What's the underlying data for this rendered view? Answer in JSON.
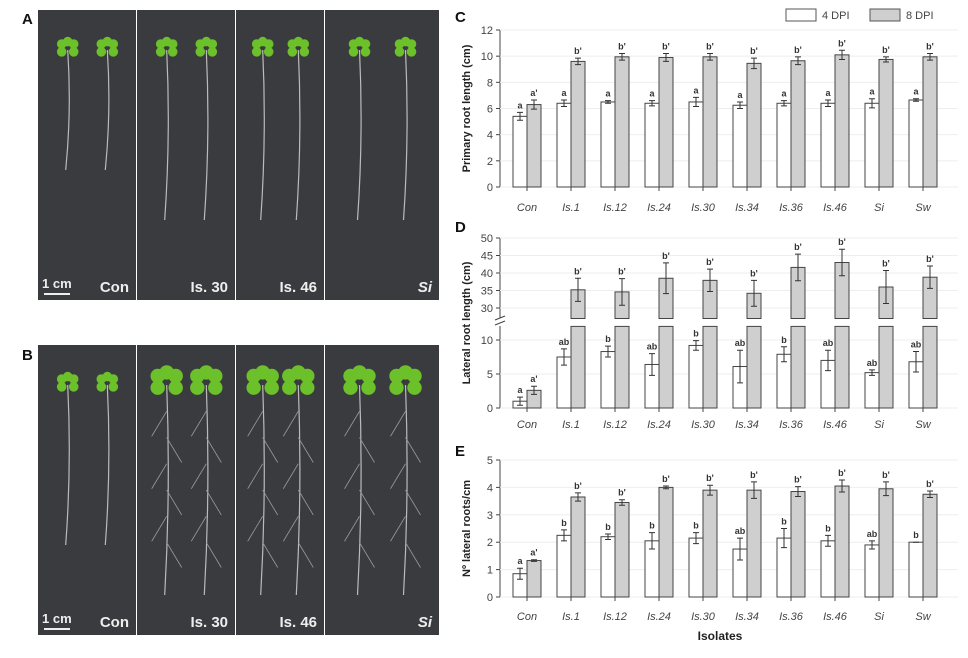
{
  "figure": {
    "panel_labels": [
      "A",
      "B",
      "C",
      "D",
      "E"
    ],
    "photos": {
      "scale_bar": "1 cm",
      "treatments": [
        {
          "label": "Con",
          "italic": false
        },
        {
          "label": "Is. 30",
          "italic": false
        },
        {
          "label": "Is. 46",
          "italic": false
        },
        {
          "label": "Si",
          "italic": true
        }
      ]
    },
    "legend": [
      "4 DPI",
      "8 DPI"
    ],
    "colors": {
      "4 DPI": "#ffffff",
      "8 DPI": "#cfcfcf",
      "photo_background": "#3a3b3f",
      "leaves": "#6cc02a"
    }
  },
  "chart_data": [
    {
      "panel": "C",
      "type": "bar",
      "ylabel": "Primary root length (cm)",
      "xlabel": "",
      "ylim": [
        0,
        12
      ],
      "yticks": [
        0,
        2,
        4,
        6,
        8,
        10,
        12
      ],
      "categories": [
        "Con",
        "Is.1",
        "Is.12",
        "Is.24",
        "Is.30",
        "Is.34",
        "Is.36",
        "Is.46",
        "Si",
        "Sw"
      ],
      "series": [
        {
          "name": "4 DPI",
          "values": [
            5.4,
            6.4,
            6.5,
            6.4,
            6.5,
            6.25,
            6.4,
            6.4,
            6.4,
            6.65
          ],
          "errors": [
            0.3,
            0.25,
            0.1,
            0.2,
            0.35,
            0.25,
            0.2,
            0.25,
            0.35,
            0.1
          ],
          "labels": [
            "a",
            "a",
            "a",
            "a",
            "a",
            "a",
            "a",
            "a",
            "a",
            "a"
          ]
        },
        {
          "name": "8 DPI",
          "values": [
            6.3,
            9.6,
            9.95,
            9.9,
            9.95,
            9.45,
            9.65,
            10.1,
            9.75,
            9.95
          ],
          "errors": [
            0.35,
            0.25,
            0.25,
            0.3,
            0.25,
            0.4,
            0.3,
            0.35,
            0.2,
            0.25
          ],
          "labels": [
            "a'",
            "b'",
            "b'",
            "b'",
            "b'",
            "b'",
            "b'",
            "b'",
            "b'",
            "b'"
          ]
        }
      ]
    },
    {
      "panel": "D",
      "type": "bar",
      "axis_break": true,
      "ylabel": "Lateral root length (cm)",
      "xlabel": "",
      "ylim_lower": [
        0,
        12
      ],
      "ylim_upper": [
        27,
        50
      ],
      "yticks": [
        0,
        5,
        10,
        30,
        35,
        40,
        45,
        50
      ],
      "categories": [
        "Con",
        "Is.1",
        "Is.12",
        "Is.24",
        "Is.30",
        "Is.34",
        "Is.36",
        "Is.46",
        "Si",
        "Sw"
      ],
      "series": [
        {
          "name": "4 DPI",
          "values": [
            1.0,
            7.5,
            8.3,
            6.4,
            9.2,
            6.1,
            7.9,
            7.0,
            5.2,
            6.8
          ],
          "errors": [
            0.6,
            1.2,
            0.8,
            1.6,
            0.7,
            2.4,
            1.1,
            1.5,
            0.4,
            1.5
          ],
          "labels": [
            "a",
            "ab",
            "b",
            "ab",
            "b",
            "ab",
            "b",
            "ab",
            "ab",
            "ab"
          ]
        },
        {
          "name": "8 DPI",
          "values": [
            2.6,
            35.2,
            34.6,
            38.5,
            37.9,
            34.2,
            41.6,
            43.0,
            36.0,
            38.8
          ],
          "errors": [
            0.6,
            3.3,
            3.8,
            4.4,
            3.2,
            3.7,
            3.8,
            3.8,
            4.7,
            3.2
          ],
          "labels": [
            "a'",
            "b'",
            "b'",
            "b'",
            "b'",
            "b'",
            "b'",
            "b'",
            "b'",
            "b'"
          ]
        }
      ]
    },
    {
      "panel": "E",
      "type": "bar",
      "ylabel": "Nº lateral roots/cm",
      "xlabel": "Isolates",
      "ylim": [
        0,
        5
      ],
      "yticks": [
        0,
        1,
        2,
        3,
        4,
        5
      ],
      "categories": [
        "Con",
        "Is.1",
        "Is.12",
        "Is.24",
        "Is.30",
        "Is.34",
        "Is.36",
        "Is.46",
        "Si",
        "Sw"
      ],
      "series": [
        {
          "name": "4 DPI",
          "values": [
            0.85,
            2.25,
            2.2,
            2.05,
            2.15,
            1.75,
            2.15,
            2.05,
            1.9,
            2.0
          ],
          "errors": [
            0.2,
            0.2,
            0.1,
            0.3,
            0.2,
            0.4,
            0.35,
            0.2,
            0.15,
            0.0
          ],
          "labels": [
            "a",
            "b",
            "b",
            "b",
            "b",
            "ab",
            "b",
            "b",
            "ab",
            "b"
          ]
        },
        {
          "name": "8 DPI",
          "values": [
            1.33,
            3.65,
            3.45,
            4.0,
            3.9,
            3.9,
            3.85,
            4.05,
            3.95,
            3.75
          ],
          "errors": [
            0.03,
            0.15,
            0.1,
            0.05,
            0.18,
            0.3,
            0.18,
            0.22,
            0.25,
            0.12
          ],
          "labels": [
            "a'",
            "b'",
            "b'",
            "b'",
            "b'",
            "b'",
            "b'",
            "b'",
            "b'",
            "b'"
          ]
        }
      ]
    }
  ]
}
